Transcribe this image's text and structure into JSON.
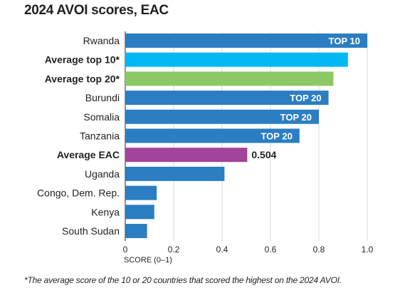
{
  "chart_data": {
    "type": "bar",
    "orientation": "horizontal",
    "title": "2024 AVOI scores, EAC",
    "xlabel": "SCORE (0–1)",
    "xlim": [
      0,
      1
    ],
    "xticks": [
      "0",
      "0.2",
      "0.4",
      "0.6",
      "0.8",
      "1.0"
    ],
    "grid": true,
    "categories": [
      "Rwanda",
      "Average top 10*",
      "Average top 20*",
      "Burundi",
      "Somalia",
      "Tanzania",
      "Average EAC",
      "Uganda",
      "Congo, Dem. Rep.",
      "Kenya",
      "South Sudan"
    ],
    "values": [
      1.0,
      0.92,
      0.86,
      0.84,
      0.8,
      0.72,
      0.504,
      0.41,
      0.13,
      0.12,
      0.09
    ],
    "bold_categories": [
      false,
      true,
      true,
      false,
      false,
      false,
      true,
      false,
      false,
      false,
      false
    ],
    "bar_colors": [
      "#2b7ec1",
      "#00b9f2",
      "#8cc866",
      "#2b7ec1",
      "#2b7ec1",
      "#2b7ec1",
      "#a2449a",
      "#2b7ec1",
      "#2b7ec1",
      "#2b7ec1",
      "#2b7ec1"
    ],
    "bar_labels": [
      "TOP 10",
      "",
      "",
      "TOP 20",
      "TOP 20",
      "TOP 20",
      "0.504",
      "",
      "",
      "",
      ""
    ],
    "footnote": "*The average score of the 10 or 20 countries that scored the highest on the 2024 AVOI."
  }
}
